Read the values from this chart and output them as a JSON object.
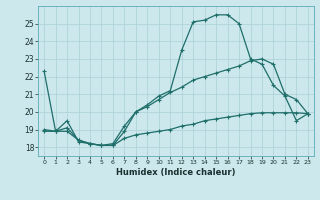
{
  "xlabel": "Humidex (Indice chaleur)",
  "background_color": "#cce8ec",
  "grid_color": "#aad0d8",
  "line_color": "#1e6e6a",
  "xlim": [
    -0.5,
    23.5
  ],
  "ylim": [
    17.5,
    26.0
  ],
  "yticks": [
    18,
    19,
    20,
    21,
    22,
    23,
    24,
    25
  ],
  "xticks": [
    0,
    1,
    2,
    3,
    4,
    5,
    6,
    7,
    8,
    9,
    10,
    11,
    12,
    13,
    14,
    15,
    16,
    17,
    18,
    19,
    20,
    21,
    22,
    23
  ],
  "series1_x": [
    0,
    1,
    2,
    3,
    4,
    5,
    6,
    7,
    8,
    9,
    10,
    11,
    12,
    13,
    14,
    15,
    16,
    17,
    18,
    19,
    20,
    21,
    22,
    23
  ],
  "series1_y": [
    22.3,
    18.9,
    19.1,
    18.4,
    18.2,
    18.1,
    18.1,
    18.9,
    20.0,
    20.4,
    20.9,
    21.2,
    23.5,
    25.1,
    25.2,
    25.5,
    25.5,
    25.0,
    23.0,
    22.7,
    21.5,
    20.9,
    19.5,
    19.9
  ],
  "series2_x": [
    0,
    1,
    2,
    3,
    4,
    5,
    6,
    7,
    8,
    9,
    10,
    11,
    12,
    13,
    14,
    15,
    16,
    17,
    18,
    19,
    20,
    21,
    22,
    23
  ],
  "series2_y": [
    19.0,
    18.9,
    19.5,
    18.3,
    18.2,
    18.1,
    18.2,
    19.2,
    20.0,
    20.3,
    20.7,
    21.1,
    21.4,
    21.8,
    22.0,
    22.2,
    22.4,
    22.6,
    22.9,
    23.0,
    22.7,
    21.0,
    20.7,
    19.9
  ],
  "series3_x": [
    0,
    1,
    2,
    3,
    4,
    5,
    6,
    7,
    8,
    9,
    10,
    11,
    12,
    13,
    14,
    15,
    16,
    17,
    18,
    19,
    20,
    21,
    22,
    23
  ],
  "series3_y": [
    18.9,
    18.9,
    18.9,
    18.4,
    18.2,
    18.1,
    18.1,
    18.5,
    18.7,
    18.8,
    18.9,
    19.0,
    19.2,
    19.3,
    19.5,
    19.6,
    19.7,
    19.8,
    19.9,
    19.95,
    19.95,
    19.95,
    19.95,
    19.9
  ]
}
